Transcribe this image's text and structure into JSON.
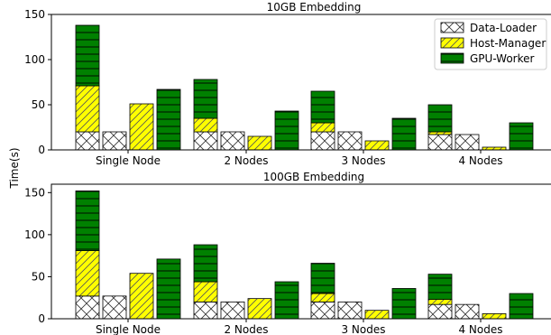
{
  "figure": {
    "ylabel": "Time(s)"
  },
  "legend": {
    "entries": [
      {
        "name": "Data-Loader",
        "pattern": "cross-hatch",
        "color": "#ffffff"
      },
      {
        "name": "Host-Manager",
        "pattern": "diagonal-hatch",
        "color": "#ffff00"
      },
      {
        "name": "GPU-Worker",
        "pattern": "horizontal-hatch",
        "color": "#008000"
      }
    ],
    "placement": "top-right"
  },
  "chart_data": [
    {
      "type": "bar",
      "title": "10GB Embedding",
      "xlabel": "",
      "ylabel": "",
      "ylim": [
        0,
        150
      ],
      "yticks": [
        "0",
        "50",
        "100",
        "150"
      ],
      "categories": [
        "Single Node",
        "2 Nodes",
        "3 Nodes",
        "4 Nodes"
      ],
      "stacked_bar": [
        {
          "category": "Single Node",
          "data_loader": 20,
          "host_manager": 51,
          "gpu_worker": 67
        },
        {
          "category": "2 Nodes",
          "data_loader": 20,
          "host_manager": 15,
          "gpu_worker": 43
        },
        {
          "category": "3 Nodes",
          "data_loader": 20,
          "host_manager": 10,
          "gpu_worker": 35
        },
        {
          "category": "4 Nodes",
          "data_loader": 17,
          "host_manager": 3,
          "gpu_worker": 30
        }
      ],
      "series": [
        {
          "name": "Data-Loader",
          "values": [
            20,
            20,
            20,
            17
          ]
        },
        {
          "name": "Host-Manager",
          "values": [
            51,
            15,
            10,
            3
          ]
        },
        {
          "name": "GPU-Worker",
          "values": [
            67,
            43,
            35,
            30
          ]
        }
      ],
      "grid": false
    },
    {
      "type": "bar",
      "title": "100GB Embedding",
      "xlabel": "",
      "ylabel": "",
      "ylim": [
        0,
        160
      ],
      "yticks": [
        "0",
        "50",
        "100",
        "150"
      ],
      "categories": [
        "Single Node",
        "2 Nodes",
        "3 Nodes",
        "4 Nodes"
      ],
      "stacked_bar": [
        {
          "category": "Single Node",
          "data_loader": 27,
          "host_manager": 54,
          "gpu_worker": 71
        },
        {
          "category": "2 Nodes",
          "data_loader": 20,
          "host_manager": 24,
          "gpu_worker": 44
        },
        {
          "category": "3 Nodes",
          "data_loader": 20,
          "host_manager": 10,
          "gpu_worker": 36
        },
        {
          "category": "4 Nodes",
          "data_loader": 17,
          "host_manager": 6,
          "gpu_worker": 30
        }
      ],
      "series": [
        {
          "name": "Data-Loader",
          "values": [
            27,
            20,
            20,
            17
          ]
        },
        {
          "name": "Host-Manager",
          "values": [
            54,
            24,
            10,
            6
          ]
        },
        {
          "name": "GPU-Worker",
          "values": [
            71,
            44,
            36,
            30
          ]
        }
      ],
      "grid": false
    }
  ]
}
